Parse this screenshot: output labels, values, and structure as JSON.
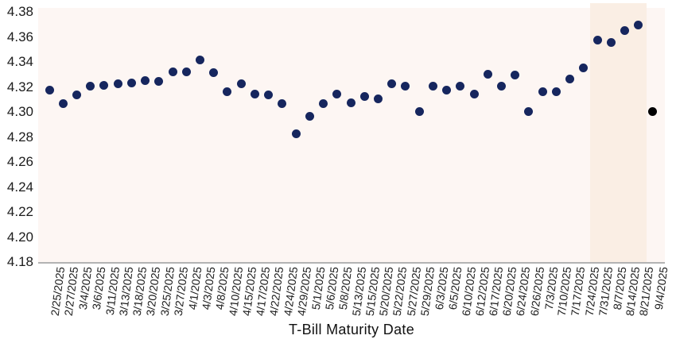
{
  "chart_data": {
    "type": "scatter",
    "xlabel": "T-Bill Maturity Date",
    "ylabel": "",
    "ylim": [
      4.18,
      4.38
    ],
    "yticks": [
      "4.18",
      "4.20",
      "4.22",
      "4.24",
      "4.26",
      "4.28",
      "4.30",
      "4.32",
      "4.34",
      "4.36",
      "4.38"
    ],
    "grid": false,
    "legend": "none",
    "categories": [
      "2/25/2025",
      "2/27/2025",
      "3/4/2025",
      "3/6/2025",
      "3/11/2025",
      "3/13/2025",
      "3/18/2025",
      "3/20/2025",
      "3/25/2025",
      "3/27/2025",
      "4/1/2025",
      "4/3/2025",
      "4/8/2025",
      "4/10/2025",
      "4/15/2025",
      "4/17/2025",
      "4/22/2025",
      "4/24/2025",
      "4/29/2025",
      "5/1/2025",
      "5/6/2025",
      "5/8/2025",
      "5/13/2025",
      "5/15/2025",
      "5/20/2025",
      "5/22/2025",
      "5/27/2025",
      "5/29/2025",
      "6/3/2025",
      "6/5/2025",
      "6/10/2025",
      "6/12/2025",
      "6/17/2025",
      "6/20/2025",
      "6/24/2025",
      "6/26/2025",
      "7/3/2025",
      "7/10/2025",
      "7/17/2025",
      "7/24/2025",
      "7/31/2025",
      "8/7/2025",
      "8/14/2025",
      "8/21/2025",
      "9/4/2025"
    ],
    "values": [
      4.318,
      4.307,
      4.314,
      4.321,
      4.322,
      4.323,
      4.324,
      4.326,
      4.325,
      4.333,
      4.333,
      4.342,
      4.332,
      4.317,
      4.323,
      4.315,
      4.314,
      4.307,
      4.283,
      4.297,
      4.307,
      4.315,
      4.308,
      4.313,
      4.311,
      4.323,
      4.321,
      4.301,
      4.321,
      4.318,
      4.321,
      4.315,
      4.331,
      4.321,
      4.33,
      4.301,
      4.317,
      4.317,
      4.327,
      4.336,
      4.358,
      4.356,
      4.366,
      4.37,
      4.301
    ],
    "point_color": "#16265e",
    "last_point_color": "#000000",
    "plot_background_color": "#fdf6f3",
    "highlight_region": {
      "start": "7/31/2025",
      "end": "8/21/2025",
      "color": "#faeee4"
    },
    "axis_line_color": "#b3b3b3"
  }
}
